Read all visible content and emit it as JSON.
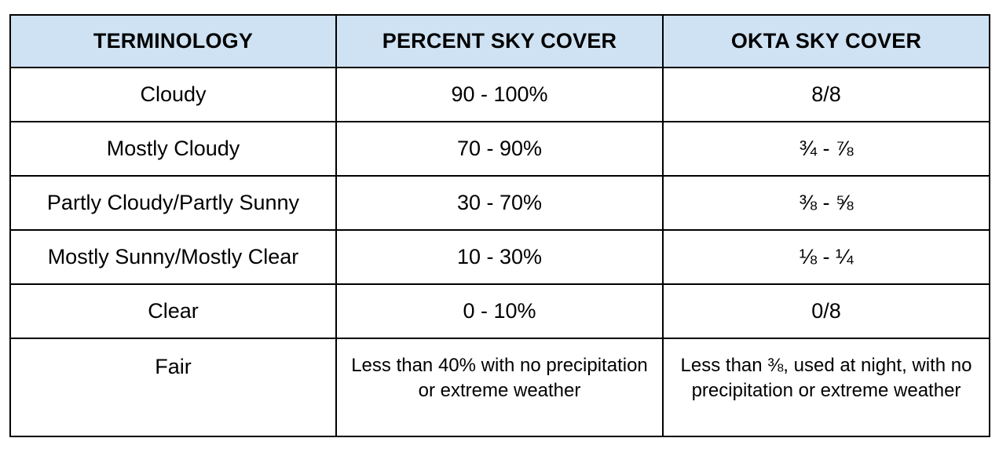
{
  "table": {
    "headers": [
      "TERMINOLOGY",
      "PERCENT SKY COVER",
      "OKTA SKY COVER"
    ],
    "rows": [
      [
        "Cloudy",
        "90 - 100%",
        "8/8"
      ],
      [
        "Mostly Cloudy",
        "70 - 90%",
        "¾ - ⅞"
      ],
      [
        "Partly Cloudy/Partly Sunny",
        "30 - 70%",
        "⅜ - ⅝"
      ],
      [
        "Mostly Sunny/Mostly Clear",
        "10 - 30%",
        "⅛ - ¼"
      ],
      [
        "Clear",
        "0 - 10%",
        "0/8"
      ],
      [
        "Fair",
        "Less than 40% with no precipitation or extreme weather",
        "Less than ⅜, used at night, with no precipitation or extreme weather"
      ]
    ]
  },
  "colors": {
    "header_background": "#cfe2f3",
    "border": "#000000"
  }
}
